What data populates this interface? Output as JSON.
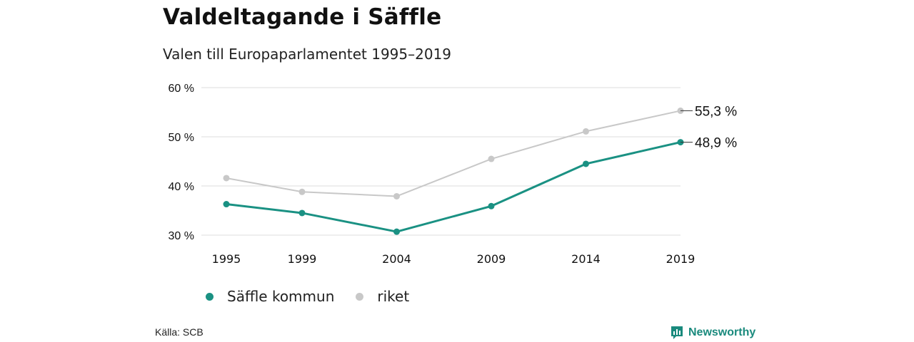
{
  "title": "Valdeltagande i Säffle",
  "subtitle": "Valen till Europaparlamentet 1995–2019",
  "source": "Källa: SCB",
  "brand": {
    "name": "Newsworthy",
    "icon": "newsworthy-logo-icon",
    "color": "#1a8a7d"
  },
  "chart_data": {
    "type": "line",
    "categories": [
      "1995",
      "1999",
      "2004",
      "2009",
      "2014",
      "2019"
    ],
    "x": [
      1995,
      1999,
      2004,
      2009,
      2014,
      2019
    ],
    "ylim": [
      30,
      60
    ],
    "yticks": [
      30,
      40,
      50,
      60
    ],
    "ytick_labels": [
      "30 %",
      "40 %",
      "50 %",
      "60 %"
    ],
    "grid": true,
    "legend_position": "bottom-left",
    "series": [
      {
        "name": "Säffle kommun",
        "color": "#1a9183",
        "values": [
          36.3,
          34.5,
          30.7,
          35.9,
          44.5,
          48.9
        ],
        "end_label": "48,9 %"
      },
      {
        "name": "riket",
        "color": "#c8c8c8",
        "values": [
          41.6,
          38.8,
          37.9,
          45.5,
          51.1,
          55.3
        ],
        "end_label": "55,3 %"
      }
    ]
  }
}
